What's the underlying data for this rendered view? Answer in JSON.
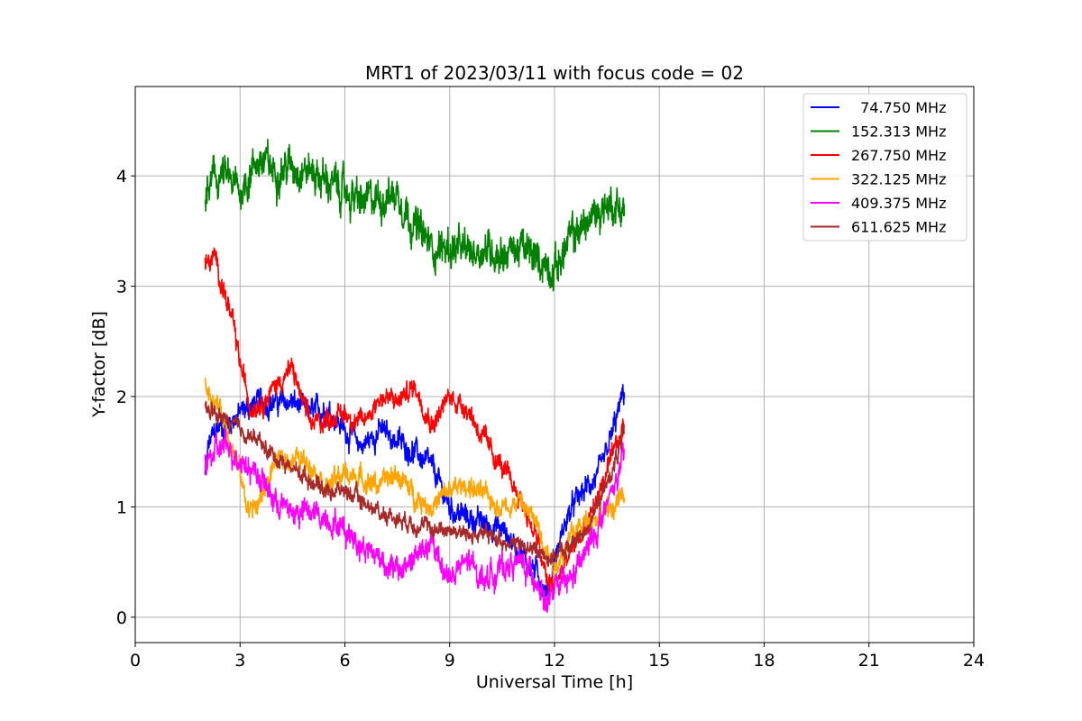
{
  "chart_data": {
    "type": "line",
    "title": "MRT1 of 2023/03/11 with focus code = 02",
    "xlabel": "Universal Time [h]",
    "ylabel": "Y-factor [dB]",
    "xlim": [
      0,
      24
    ],
    "ylim": [
      -0.23,
      4.81
    ],
    "xticks": [
      0,
      3,
      6,
      9,
      12,
      15,
      18,
      21,
      24
    ],
    "yticks": [
      0,
      1,
      2,
      3,
      4
    ],
    "grid": true,
    "legend_position": "top-right",
    "series": [
      {
        "name": "  74.750 MHz",
        "color": "#0000ff",
        "x": [
          2.0,
          2.1,
          2.3,
          2.6,
          3.0,
          3.5,
          4.0,
          4.5,
          5.0,
          5.5,
          6.0,
          6.5,
          7.0,
          7.5,
          8.0,
          8.5,
          9.0,
          9.5,
          10.0,
          10.5,
          11.0,
          11.5,
          11.8,
          12.0,
          12.3,
          12.6,
          13.0,
          13.3,
          13.6,
          14.0
        ],
        "y": [
          1.3,
          1.55,
          1.7,
          1.75,
          1.85,
          1.95,
          1.95,
          1.95,
          1.85,
          1.9,
          1.7,
          1.55,
          1.7,
          1.6,
          1.5,
          1.35,
          1.0,
          0.9,
          0.85,
          0.8,
          0.6,
          0.4,
          0.2,
          0.5,
          0.85,
          1.05,
          1.2,
          1.3,
          1.6,
          2.05
        ],
        "noise": 0.1
      },
      {
        "name": "152.313 MHz",
        "color": "#008000",
        "x": [
          2.0,
          2.2,
          2.5,
          3.0,
          3.5,
          4.0,
          4.5,
          5.0,
          5.5,
          6.0,
          6.5,
          7.0,
          7.5,
          8.0,
          8.5,
          9.0,
          9.5,
          10.0,
          10.5,
          11.0,
          11.5,
          12.0,
          12.5,
          13.0,
          13.5,
          14.0
        ],
        "y": [
          3.75,
          3.95,
          4.0,
          3.85,
          4.15,
          4.05,
          4.1,
          4.05,
          3.95,
          3.85,
          3.75,
          3.8,
          3.85,
          3.55,
          3.35,
          3.35,
          3.3,
          3.35,
          3.3,
          3.35,
          3.25,
          3.15,
          3.45,
          3.6,
          3.75,
          3.7
        ],
        "noise": 0.16
      },
      {
        "name": "267.750 MHz",
        "color": "#ff0000",
        "x": [
          2.0,
          2.3,
          2.5,
          2.8,
          3.0,
          3.3,
          3.8,
          4.0,
          4.5,
          5.0,
          5.5,
          6.0,
          6.5,
          7.0,
          7.5,
          8.0,
          8.5,
          9.0,
          9.5,
          10.0,
          10.5,
          11.0,
          11.5,
          11.8,
          12.0,
          12.5,
          13.0,
          13.5,
          14.0
        ],
        "y": [
          3.2,
          3.25,
          3.0,
          2.65,
          2.3,
          1.9,
          2.0,
          2.1,
          2.25,
          1.75,
          1.8,
          1.85,
          1.75,
          2.0,
          1.95,
          2.1,
          1.75,
          2.0,
          1.9,
          1.6,
          1.35,
          1.1,
          0.7,
          0.3,
          0.3,
          0.6,
          0.9,
          1.3,
          1.75
        ],
        "noise": 0.09
      },
      {
        "name": "322.125 MHz",
        "color": "#ffa500",
        "x": [
          2.0,
          2.5,
          3.0,
          3.2,
          3.5,
          4.0,
          4.5,
          5.0,
          5.5,
          6.0,
          6.5,
          7.0,
          7.5,
          8.0,
          8.5,
          9.0,
          9.5,
          10.0,
          10.5,
          11.0,
          11.5,
          12.0,
          12.5,
          13.0,
          13.5,
          14.0
        ],
        "y": [
          2.1,
          1.85,
          1.3,
          1.0,
          1.0,
          1.4,
          1.45,
          1.4,
          1.2,
          1.3,
          1.25,
          1.2,
          1.3,
          1.1,
          1.0,
          1.15,
          1.2,
          1.1,
          1.0,
          1.05,
          0.85,
          0.45,
          0.75,
          0.9,
          0.95,
          1.1
        ],
        "noise": 0.09
      },
      {
        "name": "409.375 MHz",
        "color": "#ff00ff",
        "x": [
          2.0,
          2.5,
          3.0,
          3.5,
          4.0,
          4.5,
          5.0,
          5.5,
          6.0,
          6.5,
          7.0,
          7.5,
          8.0,
          8.5,
          9.0,
          9.5,
          10.0,
          10.5,
          11.0,
          11.5,
          11.8,
          12.0,
          12.5,
          13.0,
          13.5,
          14.0
        ],
        "y": [
          1.4,
          1.55,
          1.45,
          1.3,
          1.05,
          0.95,
          0.95,
          0.9,
          0.8,
          0.65,
          0.55,
          0.4,
          0.55,
          0.65,
          0.35,
          0.5,
          0.35,
          0.45,
          0.5,
          0.35,
          0.1,
          0.25,
          0.35,
          0.65,
          1.0,
          1.45
        ],
        "noise": 0.11
      },
      {
        "name": "611.625 MHz",
        "color": "#a52a2a",
        "x": [
          2.0,
          2.5,
          3.0,
          3.5,
          4.0,
          4.5,
          5.0,
          5.5,
          6.0,
          6.5,
          7.0,
          7.5,
          8.0,
          8.5,
          9.0,
          9.5,
          10.0,
          10.5,
          11.0,
          11.5,
          11.8,
          12.0,
          12.5,
          13.0,
          13.5,
          14.0
        ],
        "y": [
          1.9,
          1.8,
          1.7,
          1.6,
          1.45,
          1.35,
          1.25,
          1.15,
          1.15,
          1.05,
          0.95,
          0.9,
          0.85,
          0.8,
          0.8,
          0.75,
          0.75,
          0.7,
          0.65,
          0.6,
          0.55,
          0.55,
          0.65,
          0.85,
          1.2,
          1.65
        ],
        "noise": 0.07
      }
    ]
  }
}
